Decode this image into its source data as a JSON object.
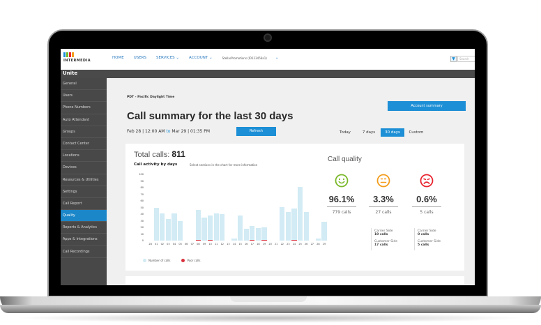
{
  "header": {
    "logo_text": "INTERMEDIA",
    "logo_colors": [
      "#1d8fd6",
      "#7ab828",
      "#e8232e",
      "#f39c1b"
    ],
    "nav": [
      {
        "label": "HOME"
      },
      {
        "label": "USERS"
      },
      {
        "label": "SERVICES ⌄"
      },
      {
        "label": "ACCOUNT ⌄"
      }
    ],
    "account_name": "StellarPromotions (ID123456a1)",
    "account_chevron": "⌄",
    "filter_icon": "▼",
    "search_placeholder": "Search"
  },
  "app_bar": {
    "title": "Unite"
  },
  "sidebar": {
    "items": [
      {
        "label": "General"
      },
      {
        "label": "Users"
      },
      {
        "label": "Phone Numbers"
      },
      {
        "label": "Auto Attendant"
      },
      {
        "label": "Groups"
      },
      {
        "label": "Contact Center"
      },
      {
        "label": "Locations"
      },
      {
        "label": "Devices"
      },
      {
        "label": "Resources & Utilities"
      },
      {
        "label": "Settings"
      },
      {
        "label": "Call Report"
      },
      {
        "label": "Quality",
        "active": true
      },
      {
        "label": "Reports & Analytics"
      },
      {
        "label": "Apps & Integrations"
      },
      {
        "label": "Call Recordings"
      }
    ]
  },
  "main": {
    "timezone": "PDT - Pacific Daylight Time",
    "account_summary_label": "Account summary",
    "title": "Call summary for the last 30 days",
    "date_from": "Feb 28  |  12:00 AM",
    "date_to_word": "to",
    "date_to": "Mar 29  |  01:35 PM",
    "refresh_label": "Refresh",
    "range_tabs": [
      {
        "label": "Today"
      },
      {
        "label": "7 days"
      },
      {
        "label": "30 days",
        "active": true
      },
      {
        "label": "Custom"
      }
    ],
    "total_calls_label": "Total calls:",
    "total_calls_value": "811",
    "activity_title": "Call activity by days",
    "activity_hint": "Select sections in the chart for more information",
    "legend": [
      {
        "label": "Number of calls",
        "color": "#d2ebf4"
      },
      {
        "label": "Poor calls",
        "color": "#d9303d"
      }
    ]
  },
  "quality": {
    "title": "Call quality",
    "columns": [
      {
        "icon": "smile-icon",
        "color": "#7ab828",
        "percent": "96.1%",
        "calls": "779 calls"
      },
      {
        "icon": "neutral-face-icon",
        "color": "#f39c1b",
        "percent": "3.3%",
        "calls": "27 calls",
        "carrier_label": "Carrier Side",
        "carrier_value": "10 calls",
        "customer_label": "Customer Side",
        "customer_value": "17 calls"
      },
      {
        "icon": "sad-face-icon",
        "color": "#e8232e",
        "percent": "0.6%",
        "calls": "5 calls",
        "carrier_label": "Carrier Side",
        "carrier_value": "0 calls",
        "customer_label": "Customer Side",
        "customer_value": "5 calls"
      }
    ]
  },
  "chart_data": {
    "type": "bar",
    "title": "Call activity by days",
    "xlabel": "",
    "ylabel": "",
    "ylim": [
      0,
      100
    ],
    "yticks": [
      0,
      10,
      20,
      30,
      40,
      50,
      60,
      70,
      80,
      90,
      100
    ],
    "categories": [
      "28",
      "01",
      "02",
      "03",
      "04",
      "05",
      "06",
      "07",
      "08",
      "09",
      "10",
      "11",
      "12",
      "13",
      "14",
      "15",
      "16",
      "17",
      "18",
      "19",
      "20",
      "21",
      "22",
      "23",
      "24",
      "25",
      "26",
      "27",
      "28",
      "29"
    ],
    "series": [
      {
        "name": "Number of calls",
        "color": "#d2ebf4",
        "values": [
          0,
          50,
          41,
          33,
          41,
          30,
          0,
          0,
          46,
          35,
          38,
          41,
          40,
          0,
          3,
          38,
          18,
          22,
          19,
          20,
          0,
          0,
          51,
          43,
          48,
          81,
          43,
          0,
          3,
          28
        ]
      },
      {
        "name": "Poor calls",
        "color": "#d9303d",
        "values": [
          0,
          0,
          0,
          0,
          0,
          0,
          0,
          0,
          1,
          0,
          1,
          0,
          0,
          0,
          0,
          0,
          0,
          1,
          0,
          1,
          0,
          0,
          0,
          0,
          1,
          0,
          0,
          0,
          0,
          0
        ]
      }
    ],
    "legend_position": "bottom-left",
    "grid": false
  }
}
